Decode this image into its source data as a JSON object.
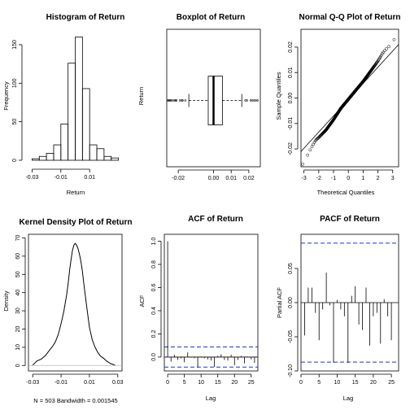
{
  "chart_data": [
    {
      "id": "hist",
      "type": "bar",
      "title": "Histogram of Return",
      "xlabel": "Return",
      "ylabel": "Frequency",
      "xlim": [
        -0.0325,
        0.0325
      ],
      "ylim": [
        0,
        170
      ],
      "xticks": [
        -0.03,
        -0.01,
        0.01
      ],
      "xtick_labels": [
        "-0.03",
        "-0.01",
        "0.01"
      ],
      "yticks": [
        0,
        50,
        100,
        150
      ],
      "ytick_labels": [
        "0",
        "50",
        "100",
        "150"
      ],
      "bin_start": -0.03,
      "bin_width": 0.005,
      "values": [
        2,
        5,
        9,
        20,
        47,
        126,
        160,
        93,
        20,
        15,
        5,
        3
      ]
    },
    {
      "id": "box",
      "type": "box",
      "title": "Boxplot of Return",
      "xlabel": "",
      "ylabel": "Return",
      "xlim": [
        -0.0265,
        0.0265
      ],
      "xticks": [
        -0.02,
        0.0,
        0.01,
        0.02
      ],
      "xtick_labels": [
        "-0.02",
        "0.00",
        "0.01",
        "0.02"
      ],
      "stats": {
        "whisker_low": -0.014,
        "q1": -0.003,
        "median": 0.0,
        "q3": 0.005,
        "whisker_high": 0.016
      },
      "outliers": [
        -0.026,
        -0.0255,
        -0.025,
        -0.0245,
        -0.024,
        -0.023,
        -0.022,
        -0.0215,
        -0.021,
        -0.019,
        -0.018,
        -0.0175,
        -0.016,
        0.018,
        0.019,
        0.021,
        0.022,
        0.023,
        0.024,
        0.025
      ]
    },
    {
      "id": "qq",
      "type": "scatter",
      "title": "Normal Q-Q Plot of Return",
      "xlabel": "Theoretical Quantiles",
      "ylabel": "Sample Quantiles",
      "xlim": [
        -3.2,
        3.4
      ],
      "ylim": [
        -0.027,
        0.027
      ],
      "xticks": [
        -3,
        -2,
        -1,
        0,
        1,
        2,
        3
      ],
      "xtick_labels": [
        "-3",
        "-2",
        "-1",
        "0",
        "1",
        "2",
        "3"
      ],
      "yticks": [
        -0.02,
        -0.01,
        0.0,
        0.01,
        0.02
      ],
      "ytick_labels": [
        "-0.02",
        "-0.01",
        "0.00",
        "0.01",
        "0.02"
      ],
      "n": 503,
      "reference_line": {
        "x": [
          -3.2,
          3.4
        ],
        "y": [
          -0.021,
          0.021
        ]
      },
      "curve": [
        [
          -3.0,
          -0.026
        ],
        [
          -2.8,
          -0.023
        ],
        [
          -2.5,
          -0.0195
        ],
        [
          -2.2,
          -0.0165
        ],
        [
          -2.0,
          -0.0155
        ],
        [
          -1.5,
          -0.0125
        ],
        [
          -1.0,
          -0.0085
        ],
        [
          -0.5,
          -0.004
        ],
        [
          0.0,
          -0.0005
        ],
        [
          0.5,
          0.003
        ],
        [
          1.0,
          0.0065
        ],
        [
          1.5,
          0.0105
        ],
        [
          2.0,
          0.0145
        ],
        [
          2.3,
          0.0175
        ],
        [
          2.6,
          0.0195
        ],
        [
          2.9,
          0.021
        ],
        [
          3.1,
          0.023
        ],
        [
          3.2,
          0.025
        ]
      ]
    },
    {
      "id": "kde",
      "type": "line",
      "title": "Kernel Density Plot of Return",
      "xlabel": "N = 503   Bandwidth = 0.001545",
      "ylabel": "Density",
      "xlim": [
        -0.033,
        0.033
      ],
      "ylim": [
        -3,
        72
      ],
      "xticks": [
        -0.03,
        -0.01,
        0.01,
        0.03
      ],
      "xtick_labels": [
        "-0.03",
        "-0.01",
        "0.01",
        "0.03"
      ],
      "yticks": [
        0,
        10,
        20,
        30,
        40,
        50,
        60,
        70
      ],
      "ytick_labels": [
        "0",
        "10",
        "20",
        "30",
        "40",
        "50",
        "60",
        "70"
      ],
      "x": [
        -0.03,
        -0.027,
        -0.024,
        -0.021,
        -0.018,
        -0.016,
        -0.014,
        -0.012,
        -0.01,
        -0.008,
        -0.006,
        -0.005,
        -0.004,
        -0.003,
        -0.002,
        -0.001,
        0.0,
        0.001,
        0.002,
        0.003,
        0.004,
        0.005,
        0.006,
        0.008,
        0.01,
        0.012,
        0.014,
        0.016,
        0.018,
        0.02,
        0.022,
        0.025,
        0.028
      ],
      "y": [
        0.2,
        2.5,
        3.5,
        5.5,
        8.5,
        10.5,
        13,
        17,
        23,
        30,
        39,
        45,
        52,
        58,
        63,
        66,
        67,
        66,
        64,
        61,
        57,
        52,
        45,
        33,
        21,
        14,
        10,
        7,
        5,
        4,
        2.5,
        1,
        0.2
      ]
    },
    {
      "id": "acf",
      "type": "bar",
      "title": "ACF of Return",
      "xlabel": "Lag",
      "ylabel": "ACF",
      "xlim": [
        -1,
        27
      ],
      "ylim": [
        -0.12,
        1.06
      ],
      "xticks": [
        0,
        5,
        10,
        15,
        20,
        25
      ],
      "xtick_labels": [
        "0",
        "5",
        "10",
        "15",
        "20",
        "25"
      ],
      "yticks": [
        0.0,
        0.2,
        0.4,
        0.6,
        0.8,
        1.0
      ],
      "ytick_labels": [
        "0.0",
        "0.2",
        "0.4",
        "0.6",
        "0.8",
        "1.0"
      ],
      "confidence_bound": 0.087,
      "values": [
        1.0,
        -0.04,
        0.02,
        -0.025,
        -0.01,
        -0.045,
        0.04,
        -0.005,
        -0.01,
        -0.09,
        0.005,
        -0.01,
        -0.02,
        -0.03,
        -0.085,
        0.01,
        0.025,
        -0.025,
        -0.03,
        0.02,
        -0.07,
        -0.025,
        0.01,
        -0.055,
        0.005,
        -0.02,
        -0.05
      ]
    },
    {
      "id": "pacf",
      "type": "bar",
      "title": "PACF of Return",
      "xlabel": "Lag",
      "ylabel": "Partial ACF",
      "xlim": [
        0,
        27
      ],
      "ylim": [
        -0.1,
        0.1
      ],
      "xticks": [
        0,
        5,
        10,
        15,
        20,
        25
      ],
      "xtick_labels": [
        "0",
        "5",
        "10",
        "15",
        "20",
        "25"
      ],
      "yticks": [
        -0.1,
        -0.05,
        0.0,
        0.05
      ],
      "ytick_labels": [
        "-0.10",
        "-0.05",
        "0.00",
        "0.05"
      ],
      "confidence_bound": 0.087,
      "values": [
        -0.048,
        0.022,
        0.022,
        -0.015,
        -0.055,
        -0.01,
        0.044,
        -0.004,
        -0.088,
        0.004,
        -0.01,
        -0.02,
        -0.088,
        0.01,
        0.024,
        -0.032,
        -0.04,
        0.022,
        -0.063,
        -0.02,
        -0.015,
        -0.06,
        0.005,
        -0.02,
        -0.055
      ]
    }
  ]
}
